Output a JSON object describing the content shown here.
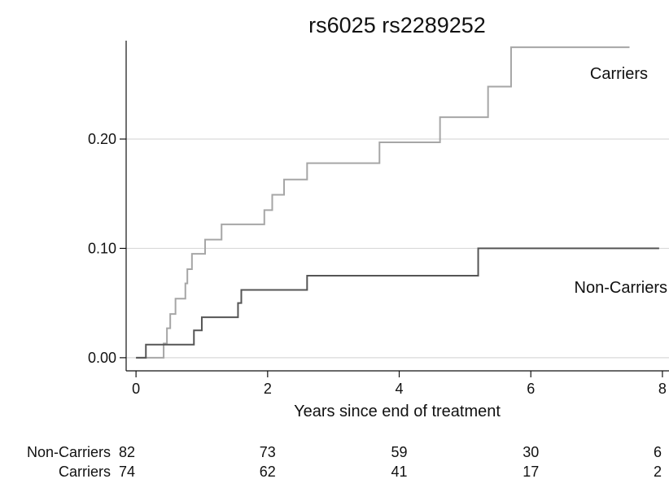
{
  "chart_data": {
    "type": "line",
    "title": "rs6025 rs2289252",
    "xlabel": "Years since end of treatment",
    "ylabel": "",
    "xlim": [
      -0.15,
      8.1
    ],
    "ylim": [
      -0.012,
      0.29
    ],
    "x_ticks": [
      0,
      2,
      4,
      6,
      8
    ],
    "y_ticks": [
      0.0,
      0.1,
      0.2
    ],
    "y_tick_labels": [
      "0.00",
      "0.10",
      "0.20"
    ],
    "grid": "horizontal",
    "step": true,
    "series": [
      {
        "name": "Carriers",
        "color": "#a6a6a6",
        "x": [
          0.0,
          0.42,
          0.47,
          0.52,
          0.6,
          0.75,
          0.78,
          0.85,
          1.05,
          1.3,
          1.95,
          2.07,
          2.25,
          2.6,
          3.7,
          4.62,
          5.35,
          5.7,
          7.5
        ],
        "y": [
          0.0,
          0.013,
          0.027,
          0.04,
          0.054,
          0.068,
          0.081,
          0.095,
          0.108,
          0.122,
          0.135,
          0.149,
          0.163,
          0.178,
          0.197,
          0.22,
          0.248,
          0.284,
          0.284
        ]
      },
      {
        "name": "Non-Carriers",
        "color": "#555555",
        "x": [
          0.0,
          0.15,
          0.88,
          1.0,
          1.55,
          1.6,
          2.6,
          5.2,
          7.95
        ],
        "y": [
          0.0,
          0.012,
          0.025,
          0.037,
          0.05,
          0.062,
          0.075,
          0.1,
          0.1
        ]
      }
    ],
    "at_risk": {
      "x": [
        0,
        2,
        4,
        6,
        8
      ],
      "rows": [
        {
          "label": "Non-Carriers",
          "values": [
            "82",
            "73",
            "59",
            "30",
            "6"
          ]
        },
        {
          "label": "Carriers",
          "values": [
            "74",
            "62",
            "41",
            "17",
            "2"
          ]
        }
      ]
    }
  }
}
